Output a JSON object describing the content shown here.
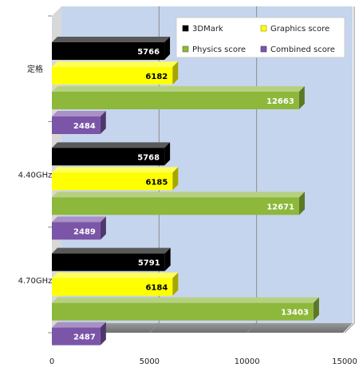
{
  "chart_data": {
    "type": "bar",
    "orientation": "horizontal",
    "three_d": true,
    "categories": [
      "定格",
      "4.40GHz",
      "4.70GHz"
    ],
    "series": [
      {
        "name": "3DMark",
        "color": "#000000",
        "label_color": "#ffffff",
        "values": [
          5766,
          5768,
          5791
        ]
      },
      {
        "name": "Graphics score",
        "color": "#ffff00",
        "label_color": "#000000",
        "values": [
          6182,
          6185,
          6184
        ]
      },
      {
        "name": "Physics score",
        "color": "#8db83b",
        "label_color": "#ffffff",
        "values": [
          12663,
          12671,
          13403
        ]
      },
      {
        "name": "Combined score",
        "color": "#7a55a8",
        "label_color": "#ffffff",
        "values": [
          2484,
          2489,
          2487
        ]
      }
    ],
    "xlim": [
      0,
      15000
    ],
    "xticks": [
      "0",
      "5000",
      "10000",
      "15000"
    ],
    "grid": true,
    "legend": "top-right",
    "plot_background": "#c6d5ee"
  }
}
